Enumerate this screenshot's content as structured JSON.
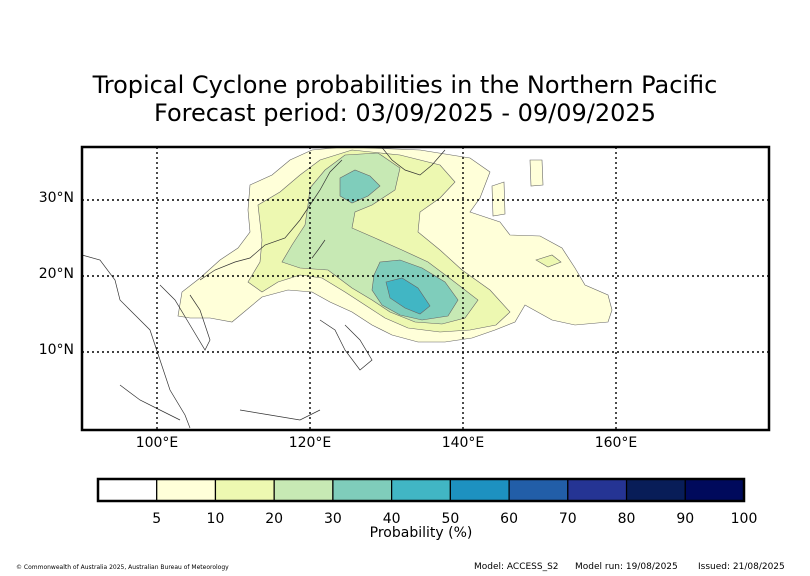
{
  "title_line1": "Tropical Cyclone probabilities in the Northern Pacific",
  "title_line2": "Forecast period: 03/09/2025 - 09/09/2025",
  "axes": {
    "lon_min": 90,
    "lon_max": 180,
    "lat_min": 0,
    "lat_max": 37,
    "lat_labels": [
      {
        "value": 30,
        "label": "30°N"
      },
      {
        "value": 20,
        "label": "20°N"
      },
      {
        "value": 10,
        "label": "10°N"
      }
    ],
    "lon_labels": [
      {
        "value": 100,
        "label": "100°E"
      },
      {
        "value": 120,
        "label": "120°E"
      },
      {
        "value": 140,
        "label": "140°E"
      },
      {
        "value": 160,
        "label": "160°E"
      }
    ]
  },
  "colorbar": {
    "title": "Probability (%)",
    "ticks": [
      "5",
      "10",
      "20",
      "30",
      "40",
      "50",
      "60",
      "70",
      "80",
      "90",
      "100"
    ],
    "colors": [
      "#ffffff",
      "#ffffd9",
      "#edf8b1",
      "#c7e9b4",
      "#7fcdbb",
      "#41b6c4",
      "#1d91c0",
      "#225ea8",
      "#253494",
      "#081d58",
      "#000a5c"
    ]
  },
  "footer": {
    "copyright": "© Commonwealth of Australia 2025, Australian Bureau of Meteorology",
    "model": "Model: ACCESS_S2",
    "model_run": "Model run: 19/08/2025",
    "issued": "Issued: 21/08/2025"
  }
}
